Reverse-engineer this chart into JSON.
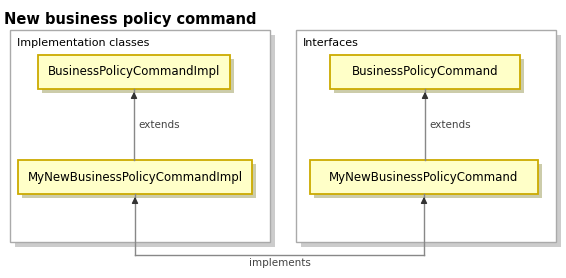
{
  "title": "New business policy command",
  "title_fontsize": 10.5,
  "title_fontweight": "bold",
  "bg_color": "#ffffff",
  "panel_border_color": "#aaaaaa",
  "panel_shadow_color": "#cccccc",
  "box_fill": "#ffffc8",
  "box_edge": "#ccaa00",
  "box_shadow": "#ccccaa",
  "text_color": "#000000",
  "arrow_color": "#888888",
  "arrowhead_color": "#333333",
  "label_color": "#444444",
  "left_panel_label": "Implementation classes",
  "right_panel_label": "Interfaces",
  "left_box_top_text": "BusinessPolicyCommandImpl",
  "left_box_bottom_text": "MyNewBusinessPolicyCommandImpl",
  "right_box_top_text": "BusinessPolicyCommand",
  "right_box_bottom_text": "MyNewBusinessPolicyCommand",
  "extends_label": "extends",
  "implements_label": "implements",
  "fig_width": 5.66,
  "fig_height": 2.78,
  "dpi": 100
}
